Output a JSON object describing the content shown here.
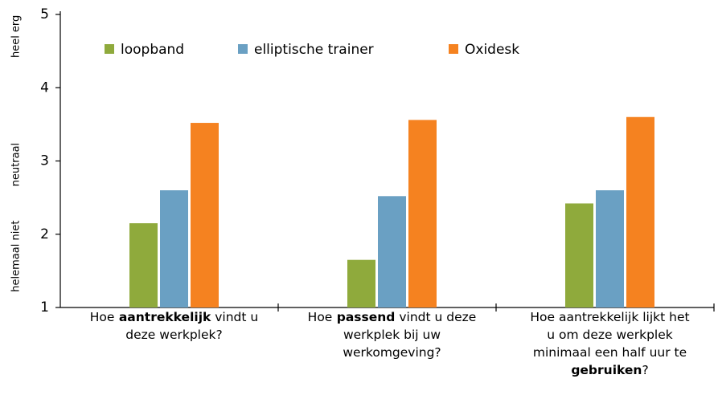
{
  "chart_data": {
    "type": "bar",
    "categories": [
      "Hoe aantrekkelijk vindt u deze werkplek?",
      "Hoe passend vindt u deze werkplek bij uw werkomgeving?",
      "Hoe aantrekkelijk lijkt het u om deze werkplek minimaal een half uur te gebruiken?"
    ],
    "category_bold": [
      "aantrekkelijk",
      "passend",
      "gebruiken"
    ],
    "series": [
      {
        "name": "loopband",
        "color": "#8faa3c",
        "values": [
          2.15,
          1.65,
          2.42
        ]
      },
      {
        "name": "elliptische trainer",
        "color": "#6aa0c3",
        "values": [
          2.6,
          2.52,
          2.6
        ]
      },
      {
        "name": "Oxidesk",
        "color": "#f58220",
        "values": [
          3.52,
          3.56,
          3.6
        ]
      }
    ],
    "ylim": [
      1,
      5
    ],
    "yticks": [
      1,
      2,
      3,
      4,
      5
    ],
    "y_annotations": [
      {
        "text": "heel erg",
        "value": 4.7
      },
      {
        "text": "neutraal",
        "value": 2.95
      },
      {
        "text": "helemaal niet",
        "value": 1.7
      }
    ],
    "legend": "top"
  }
}
